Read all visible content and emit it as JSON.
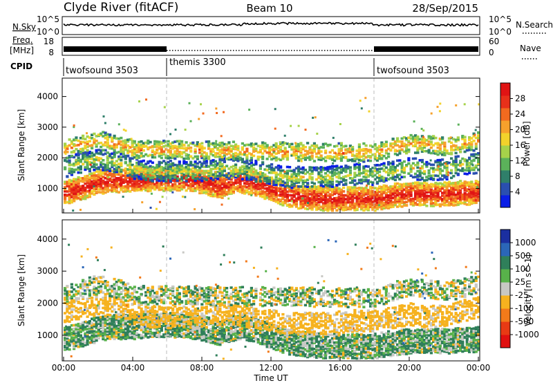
{
  "header": {
    "title": "Clyde River (fitACF)",
    "beam": "Beam 10",
    "date": "28/Sep/2015"
  },
  "top_panels": {
    "nsky_label": "N.Sky",
    "nsky_ticks": [
      "10^5",
      "10^0"
    ],
    "nsearch_label": "N.Search",
    "nsearch_ticks": [
      "10^5",
      "10^0"
    ],
    "freq_label": "Freq.",
    "freq_unit": "[MHz]",
    "freq_ticks": [
      "18",
      "8"
    ],
    "nave_label": "Nave",
    "nave_ticks": [
      "60",
      "0"
    ],
    "cpid_label": "CPID",
    "cpid_segments": [
      {
        "label": "twofsound 3503",
        "start": 0,
        "end": 6
      },
      {
        "label": "themis 3300",
        "start": 6,
        "end": 18
      },
      {
        "label": "twofsound 3503",
        "start": 18,
        "end": 24
      }
    ]
  },
  "chart_data": [
    {
      "type": "heatmap",
      "title": "",
      "xlabel": "",
      "ylabel": "Slant Range [km]",
      "xlim": [
        0,
        24
      ],
      "ylim": [
        200,
        4600
      ],
      "yticks": [
        1000,
        2000,
        3000,
        4000
      ],
      "colorbar": {
        "label": "Power [dB]",
        "ticks": [
          "4",
          "8",
          "12",
          "16",
          "20",
          "24",
          "28"
        ],
        "range": [
          0,
          32
        ],
        "colors": [
          "#0a1ee6",
          "#2a4fb0",
          "#2f7f6a",
          "#5bb15a",
          "#a6d24a",
          "#f2d22b",
          "#f6a12c",
          "#f26a1f",
          "#e8301a",
          "#e01414"
        ]
      },
      "echo_bands": [
        {
          "name": "main",
          "t": [
            0,
            1,
            2,
            3,
            4,
            5,
            6,
            7,
            8,
            9,
            10,
            11,
            12,
            13,
            14,
            15,
            16,
            17,
            18,
            19,
            20,
            21,
            22,
            23,
            24
          ],
          "range_km": [
            900,
            1050,
            1250,
            1300,
            1300,
            1350,
            1350,
            1350,
            1250,
            1100,
            1300,
            1200,
            1000,
            800,
            750,
            700,
            700,
            700,
            700,
            800,
            850,
            850,
            850,
            900,
            900
          ],
          "width_km": 350,
          "db": 26
        },
        {
          "name": "upper",
          "t": [
            0,
            1,
            2,
            3,
            4,
            5,
            6,
            7,
            8,
            9,
            10,
            11,
            12,
            13,
            14,
            15,
            16,
            17,
            18,
            19,
            20,
            21,
            22,
            23,
            24
          ],
          "range_km": [
            1700,
            1900,
            2000,
            1900,
            1700,
            1600,
            1600,
            1600,
            1600,
            1700,
            1700,
            1600,
            1500,
            1400,
            1400,
            1400,
            1450,
            1500,
            1500,
            1600,
            1700,
            1600,
            1650,
            1800,
            1900
          ],
          "width_km": 300,
          "db": 12
        },
        {
          "name": "far",
          "t": [
            0,
            1,
            2,
            3,
            4,
            5,
            18,
            19,
            20,
            21,
            22,
            23,
            24
          ],
          "range_km": [
            2300,
            2500,
            2600,
            2500,
            2300,
            2300,
            2200,
            2400,
            2500,
            2500,
            2400,
            2500,
            2600
          ],
          "width_km": 250,
          "db": 18
        }
      ]
    },
    {
      "type": "heatmap",
      "title": "",
      "xlabel": "Time UT",
      "ylabel": "Slant Range [km]",
      "xlim": [
        0,
        24
      ],
      "ylim": [
        200,
        4600
      ],
      "yticks": [
        1000,
        2000,
        3000,
        4000
      ],
      "xticks": [
        "00:00",
        "04:00",
        "08:00",
        "12:00",
        "16:00",
        "20:00",
        "00:00"
      ],
      "colorbar": {
        "label": "Velocity [m s^-1]",
        "ticks": [
          "1000",
          "500",
          "100",
          "25",
          "-25",
          "-100",
          "-500",
          "-1000"
        ],
        "colors": [
          "#1b2fa0",
          "#2b66b8",
          "#2f7f5a",
          "#58b24a",
          "#c8c8c4",
          "#f6b21f",
          "#f27a1a",
          "#e83a14",
          "#e01010"
        ]
      },
      "echo_bands": [
        {
          "name": "main",
          "t": [
            0,
            1,
            2,
            3,
            4,
            5,
            6,
            7,
            8,
            9,
            10,
            11,
            12,
            13,
            14,
            15,
            16,
            17,
            18,
            19,
            20,
            21,
            22,
            23,
            24
          ],
          "range_km": [
            900,
            1050,
            1250,
            1300,
            1300,
            1350,
            1350,
            1350,
            1250,
            1100,
            1300,
            1200,
            1000,
            800,
            750,
            700,
            700,
            700,
            700,
            800,
            850,
            850,
            850,
            900,
            900
          ],
          "width_km": 350,
          "velocity": 50
        },
        {
          "name": "upper",
          "t": [
            0,
            1,
            2,
            3,
            4,
            5,
            6,
            7,
            8,
            9,
            10,
            11,
            12,
            13,
            14,
            15,
            16,
            17,
            18,
            19,
            20,
            21,
            22,
            23,
            24
          ],
          "range_km": [
            1700,
            1900,
            2000,
            1900,
            1700,
            1600,
            1600,
            1600,
            1600,
            1700,
            1700,
            1600,
            1500,
            1400,
            1400,
            1400,
            1450,
            1500,
            1500,
            1600,
            1700,
            1600,
            1650,
            1800,
            1900
          ],
          "width_km": 300,
          "velocity": -150
        },
        {
          "name": "far",
          "t": [
            0,
            1,
            2,
            3,
            4,
            5,
            18,
            19,
            20,
            21,
            22,
            23,
            24
          ],
          "range_km": [
            2300,
            2500,
            2600,
            2500,
            2300,
            2300,
            2200,
            2400,
            2500,
            2500,
            2400,
            2500,
            2600
          ],
          "width_km": 250,
          "velocity": 0
        }
      ]
    }
  ]
}
